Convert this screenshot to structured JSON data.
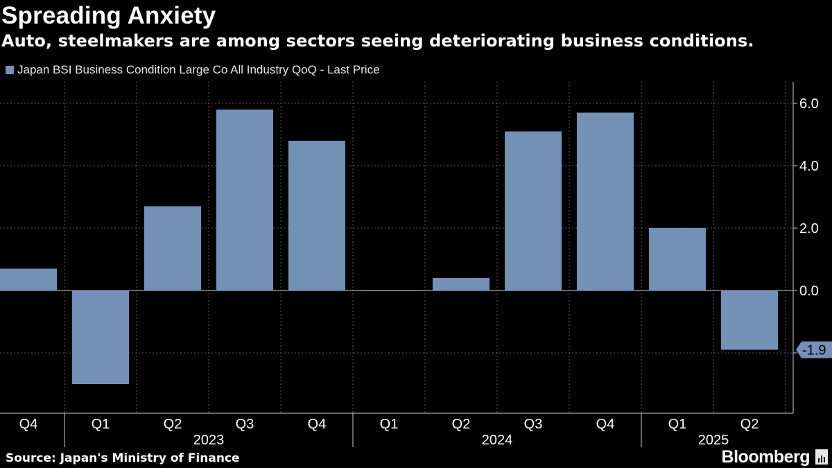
{
  "header": {
    "title": "Spreading Anxiety",
    "subtitle": "Auto, steelmakers are among sectors seeing deteriorating business conditions."
  },
  "legend": {
    "label": "Japan BSI Business Condition Large Co All Industry QoQ - Last Price",
    "color": "#7390b6"
  },
  "footer": {
    "source": "Source: Japan's Ministry of Finance",
    "brand": "Bloomberg"
  },
  "chart_data": {
    "type": "bar",
    "title": "Spreading Anxiety",
    "subtitle": "Auto, steelmakers are among sectors seeing deteriorating business conditions.",
    "categories": [
      "Q4",
      "Q1",
      "Q2",
      "Q3",
      "Q4",
      "Q1",
      "Q2",
      "Q3",
      "Q4",
      "Q1",
      "Q2"
    ],
    "year_groups": [
      {
        "label": "2023",
        "start_index": 1,
        "end_index": 4
      },
      {
        "label": "2024",
        "start_index": 5,
        "end_index": 8
      },
      {
        "label": "2025",
        "start_index": 9,
        "end_index": 10
      }
    ],
    "series": [
      {
        "name": "Japan BSI Business Condition Large Co All Industry QoQ - Last Price",
        "values": [
          0.7,
          -3.0,
          2.7,
          5.8,
          4.8,
          0.0,
          0.4,
          5.1,
          5.7,
          2.0,
          -1.9
        ],
        "color": "#7390b6"
      }
    ],
    "y_ticks": [
      6.0,
      4.0,
      2.0,
      0.0
    ],
    "y_tick_labels": [
      "6.0",
      "4.0",
      "2.0",
      "0.0"
    ],
    "ylim": [
      -3.9,
      6.7
    ],
    "last_value_label": "-1.9",
    "xlabel": "",
    "ylabel": "",
    "grid": true,
    "legend_position": "top-left"
  }
}
